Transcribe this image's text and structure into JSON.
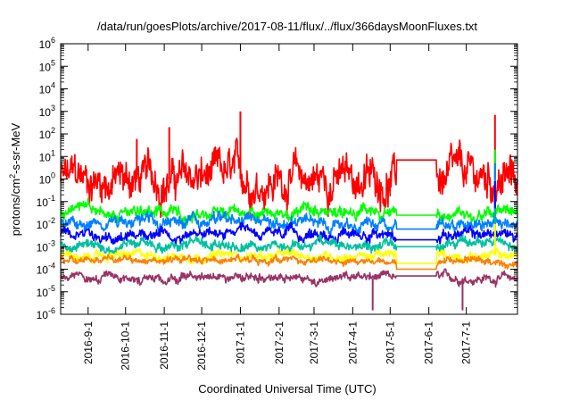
{
  "chart_data": {
    "type": "line",
    "title": "/data/run/goesPlots/archive/2017-08-11/flux/../flux/366daysMoonFluxes.txt",
    "xlabel": "Coordinated Universal Time (UTC)",
    "ylabel": "protons/cm2-s-sr-MeV",
    "ylabel_main": "protons/cm",
    "ylabel_sup": "2",
    "ylabel_rest": "-s-sr-MeV",
    "yscale": "log",
    "ylim": [
      1e-06,
      1000000.0
    ],
    "xlim": [
      "2016-08-10",
      "2017-08-11"
    ],
    "grid": false,
    "legend": "none",
    "x_ticks": [
      "2016-9-1",
      "2016-10-1",
      "2016-11-1",
      "2016-12-1",
      "2017-1-1",
      "2017-2-1",
      "2017-3-1",
      "2017-4-1",
      "2017-5-1",
      "2017-6-1",
      "2017-7-1"
    ],
    "y_ticks": [
      {
        "base": "10",
        "exp": "-6",
        "value": 1e-06
      },
      {
        "base": "10",
        "exp": "-5",
        "value": 1e-05
      },
      {
        "base": "10",
        "exp": "-4",
        "value": 0.0001
      },
      {
        "base": "10",
        "exp": "-3",
        "value": 0.001
      },
      {
        "base": "10",
        "exp": "-2",
        "value": 0.01
      },
      {
        "base": "10",
        "exp": "-1",
        "value": 0.1
      },
      {
        "base": "10",
        "exp": "0",
        "value": 1
      },
      {
        "base": "10",
        "exp": "1",
        "value": 10
      },
      {
        "base": "10",
        "exp": "2",
        "value": 100
      },
      {
        "base": "10",
        "exp": "3",
        "value": 1000
      },
      {
        "base": "10",
        "exp": "4",
        "value": 10000
      },
      {
        "base": "10",
        "exp": "5",
        "value": 100000
      },
      {
        "base": "10",
        "exp": "6",
        "value": 1000000
      }
    ],
    "gap": [
      "2017-05-06",
      "2017-06-07"
    ],
    "series": [
      {
        "color": "#ff0000",
        "base": 1.0,
        "spread": 1.1,
        "gap_value": 7.0,
        "points": [
          [
            "2016-08-25",
            3
          ],
          [
            "2016-09-20",
            0.2
          ],
          [
            "2016-10-10",
            60
          ],
          [
            "2016-11-05",
            200
          ],
          [
            "2017-01-01",
            1000
          ],
          [
            "2017-07-24",
            700
          ]
        ]
      },
      {
        "color": "#00ff00",
        "base": 0.03,
        "spread": 0.35,
        "gap_value": 0.025,
        "points": [
          [
            "2017-07-24",
            20
          ]
        ]
      },
      {
        "color": "#0080ff",
        "base": 0.012,
        "spread": 0.35,
        "gap_value": 0.006,
        "points": [
          [
            "2017-07-24",
            5
          ]
        ]
      },
      {
        "color": "#0000ff",
        "base": 0.0035,
        "spread": 0.3,
        "gap_value": 0.002,
        "points": [
          [
            "2017-07-24",
            0.8
          ]
        ]
      },
      {
        "color": "#00c0a0",
        "base": 0.0012,
        "spread": 0.3,
        "gap_value": 0.001,
        "points": [
          [
            "2017-07-24",
            0.05
          ]
        ]
      },
      {
        "color": "#ffff00",
        "base": 0.0004,
        "spread": 0.25,
        "gap_value": 0.00018,
        "points": [
          [
            "2017-07-24",
            0.01
          ]
        ]
      },
      {
        "color": "#ff8000",
        "base": 0.00025,
        "spread": 0.2,
        "gap_value": 0.0001,
        "points": []
      },
      {
        "color": "#993366",
        "base": 4e-05,
        "spread": 0.25,
        "gap_value": 5e-05,
        "points": [
          [
            "2017-04-17",
            1.5e-06
          ],
          [
            "2017-06-28",
            1.5e-06
          ]
        ]
      }
    ]
  }
}
